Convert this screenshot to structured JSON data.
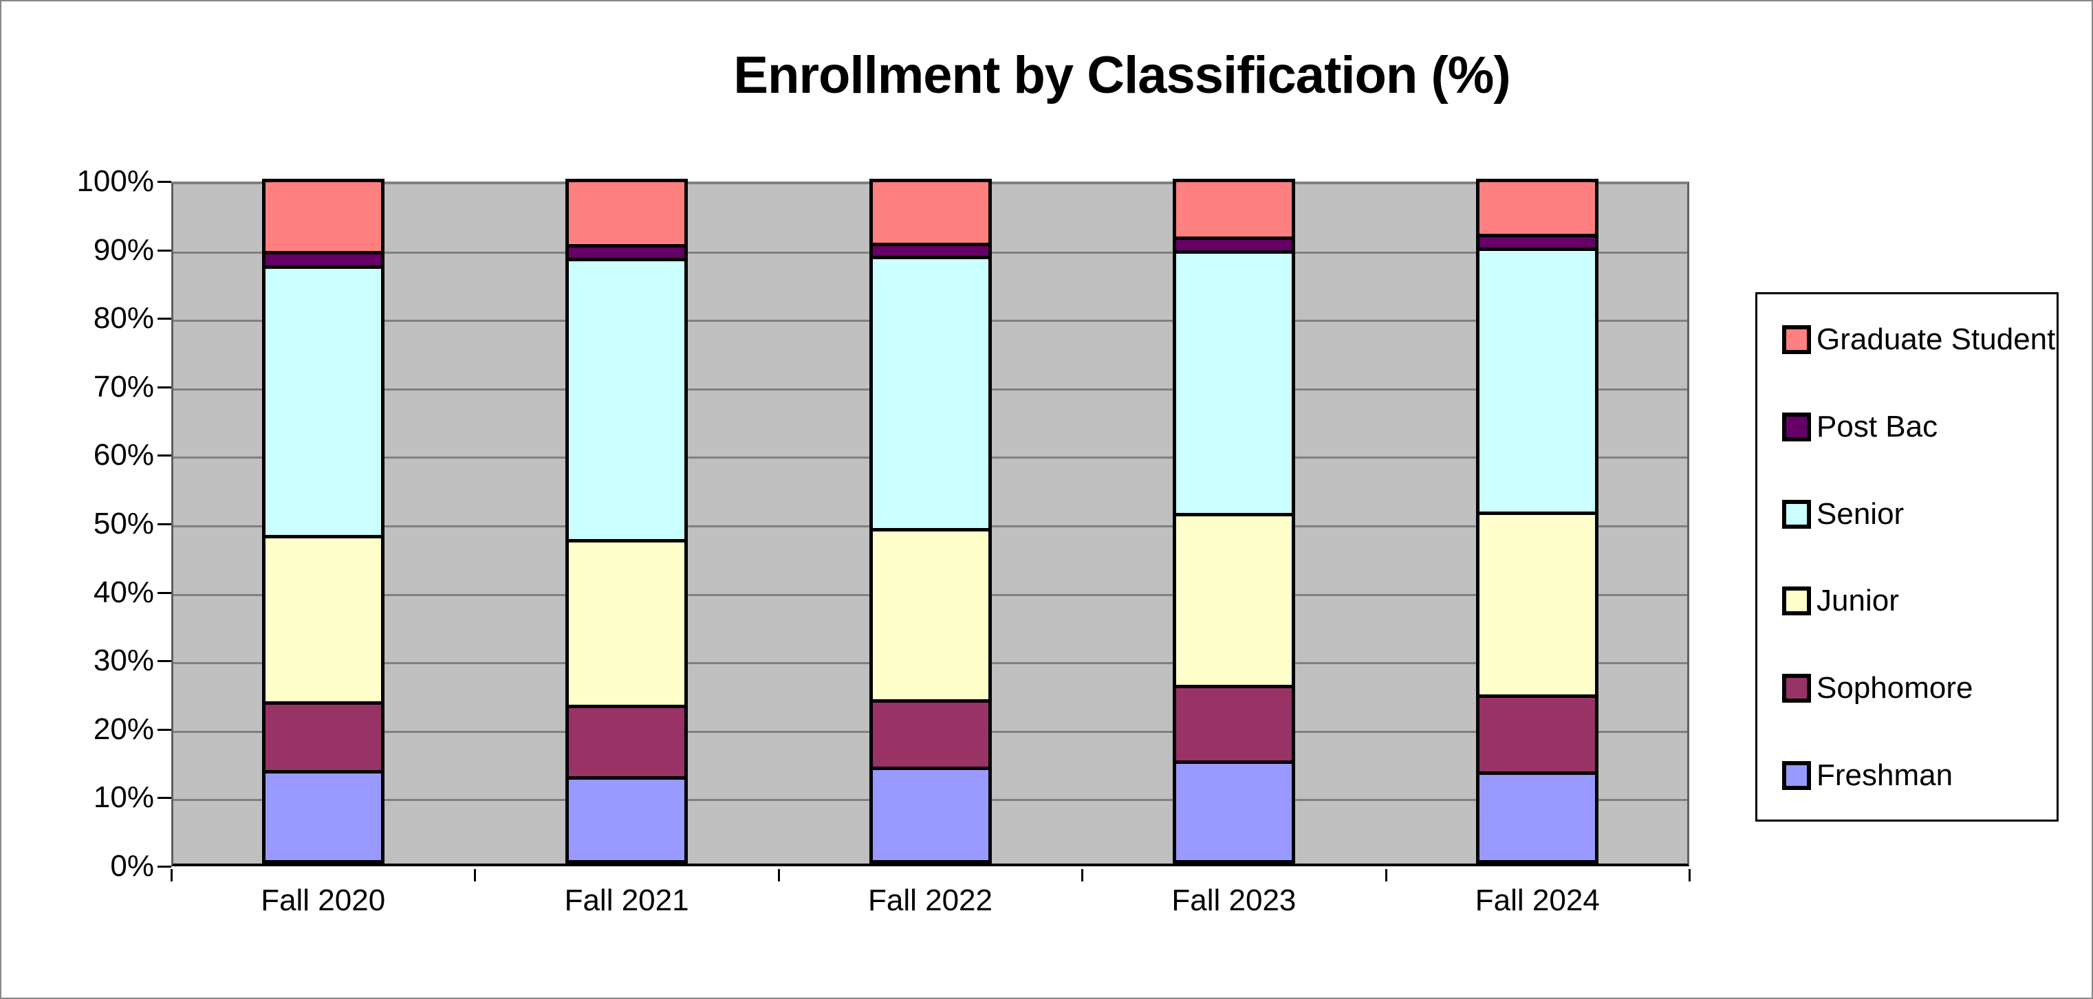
{
  "chart_data": {
    "type": "bar",
    "subtype": "stacked-100",
    "title": "Enrollment by Classification (%)",
    "categories": [
      "Fall 2020",
      "Fall 2021",
      "Fall 2022",
      "Fall 2023",
      "Fall 2024"
    ],
    "series": [
      {
        "name": "Freshman",
        "color": "#9999FF",
        "values": [
          13.7,
          12.8,
          14.2,
          15.1,
          13.5
        ]
      },
      {
        "name": "Sophomore",
        "color": "#993366",
        "values": [
          10.0,
          10.4,
          9.8,
          11.0,
          11.2
        ]
      },
      {
        "name": "Junior",
        "color": "#FFFFCC",
        "values": [
          24.3,
          24.2,
          25.0,
          25.1,
          26.7
        ]
      },
      {
        "name": "Senior",
        "color": "#CCFFFF",
        "values": [
          39.4,
          41.1,
          39.8,
          38.4,
          38.6
        ]
      },
      {
        "name": "Post Bac",
        "color": "#660066",
        "values": [
          2.1,
          2.0,
          1.9,
          2.0,
          2.0
        ]
      },
      {
        "name": "Graduate Student",
        "color": "#FF8080",
        "values": [
          10.5,
          9.5,
          9.3,
          8.4,
          8.0
        ]
      }
    ],
    "y_axis": {
      "min": 0,
      "max": 100,
      "tick_step": 10,
      "tick_labels": [
        "100%",
        "90%",
        "80%",
        "70%",
        "60%",
        "50%",
        "40%",
        "30%",
        "20%",
        "10%",
        "0%"
      ]
    },
    "legend": {
      "position": "right",
      "order": [
        "Graduate Student",
        "Post Bac",
        "Senior",
        "Junior",
        "Sophomore",
        "Freshman"
      ]
    },
    "grid": true,
    "colors": {
      "plot_background": "#C0C0C0",
      "gridline": "#808080",
      "bar_border": "#000000",
      "canvas_background": "#FFFFFF",
      "text": "#000000"
    }
  }
}
